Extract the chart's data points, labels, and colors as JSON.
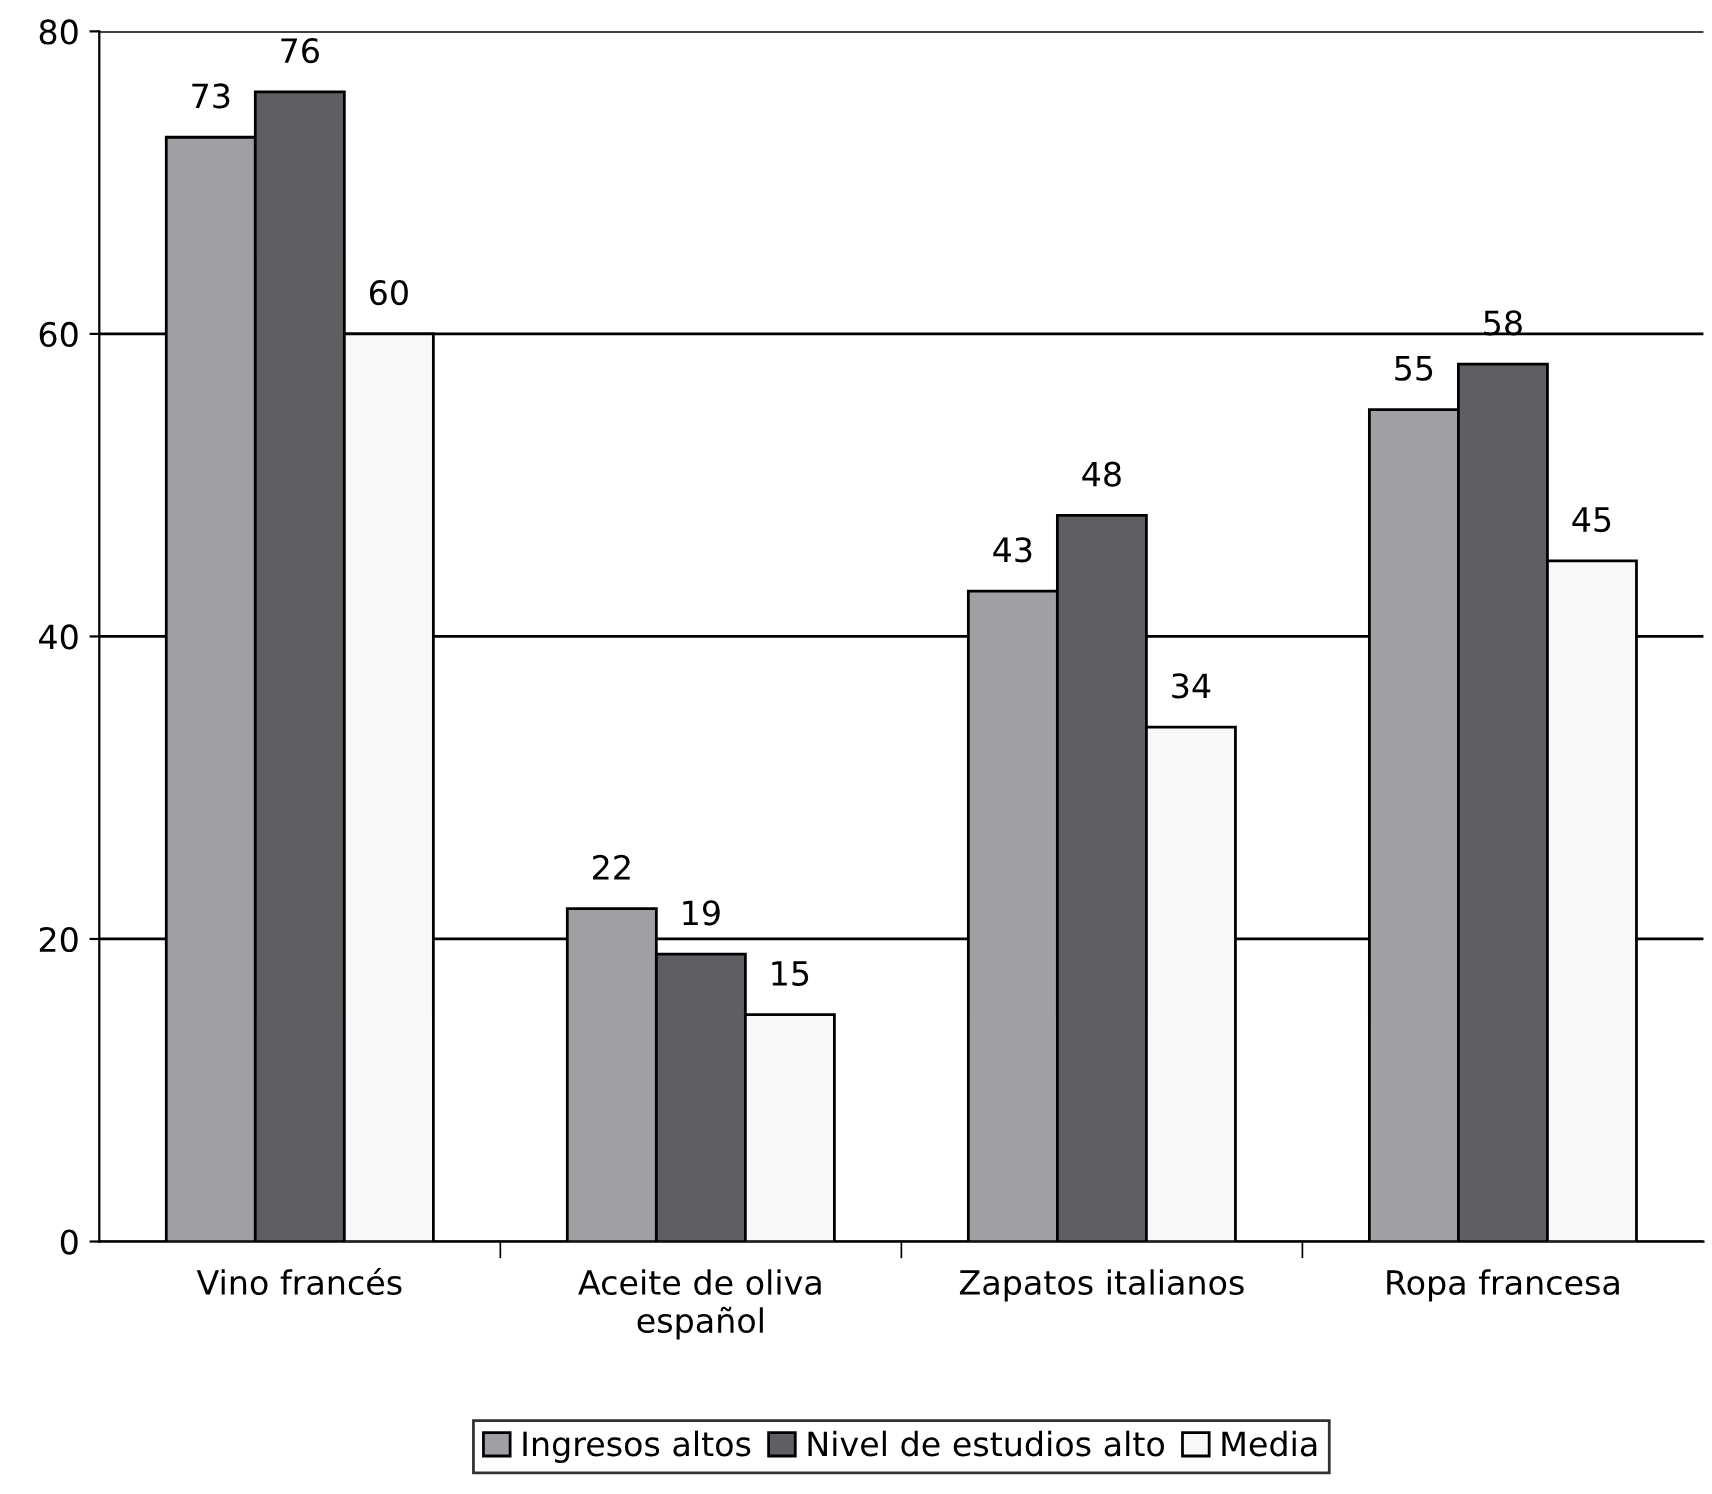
{
  "chart_data": {
    "type": "bar",
    "categories": [
      "Vino francés",
      "Aceite de oliva\nespañol",
      "Zapatos italianos",
      "Ropa francesa"
    ],
    "series": [
      {
        "name": "Ingresos altos",
        "color": "#a0a0a4",
        "values": [
          73,
          22,
          43,
          55
        ]
      },
      {
        "name": "Nivel de estudios alto",
        "color": "#5f5f63",
        "values": [
          76,
          19,
          48,
          58
        ]
      },
      {
        "name": "Media",
        "color": "#f8f8f8",
        "values": [
          60,
          15,
          34,
          45
        ]
      }
    ],
    "ylim": [
      0,
      80
    ],
    "yticks": [
      0,
      20,
      40,
      60,
      80
    ],
    "grid": "y",
    "legend": "bottom",
    "data_labels": true
  }
}
